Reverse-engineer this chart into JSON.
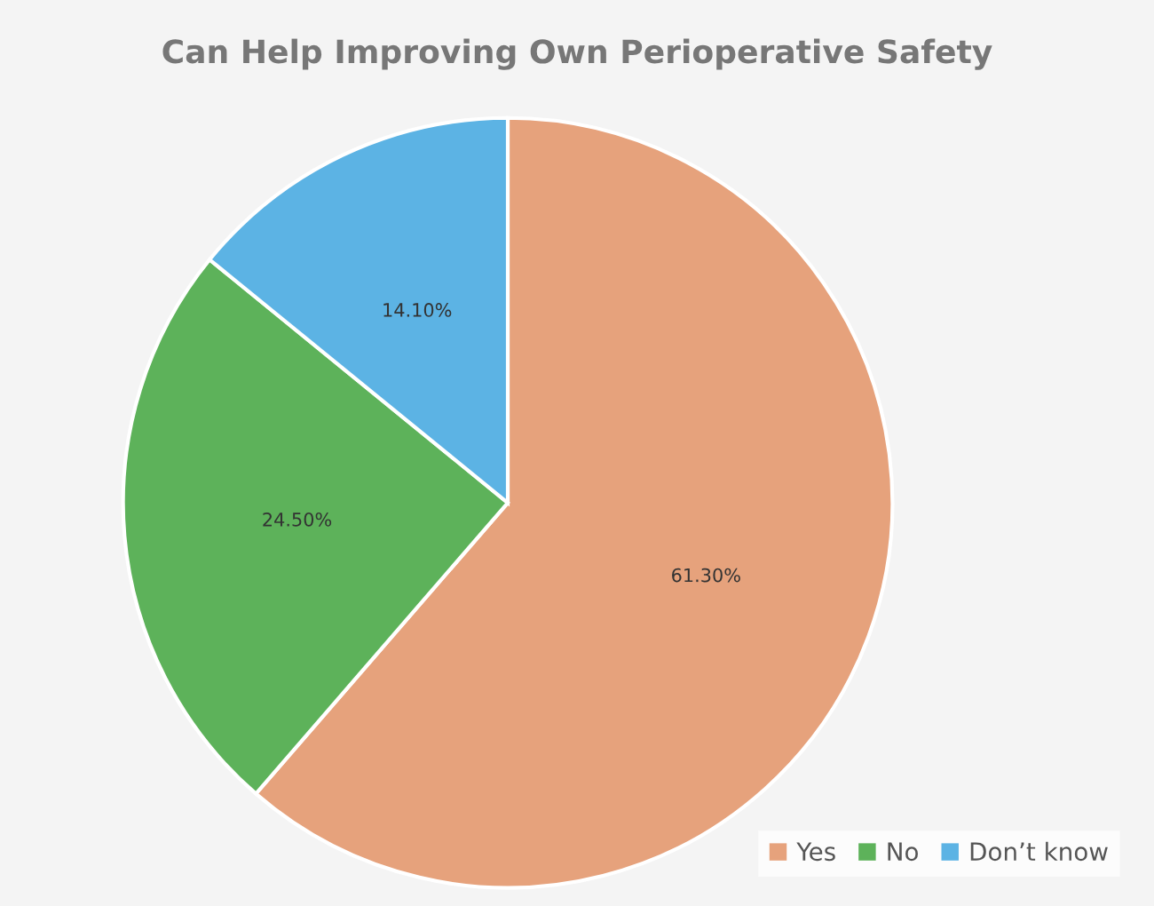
{
  "chart_data": {
    "type": "pie",
    "title": "Can Help Improving Own Perioperative Safety",
    "categories": [
      "Yes",
      "No",
      "Don’t know"
    ],
    "values": [
      61.3,
      24.5,
      14.1
    ],
    "value_labels": [
      "61.30%",
      "24.50%",
      "14.10%"
    ],
    "colors": [
      "#e6a27c",
      "#5db25a",
      "#5cb3e4"
    ],
    "legend": "bottom right"
  }
}
